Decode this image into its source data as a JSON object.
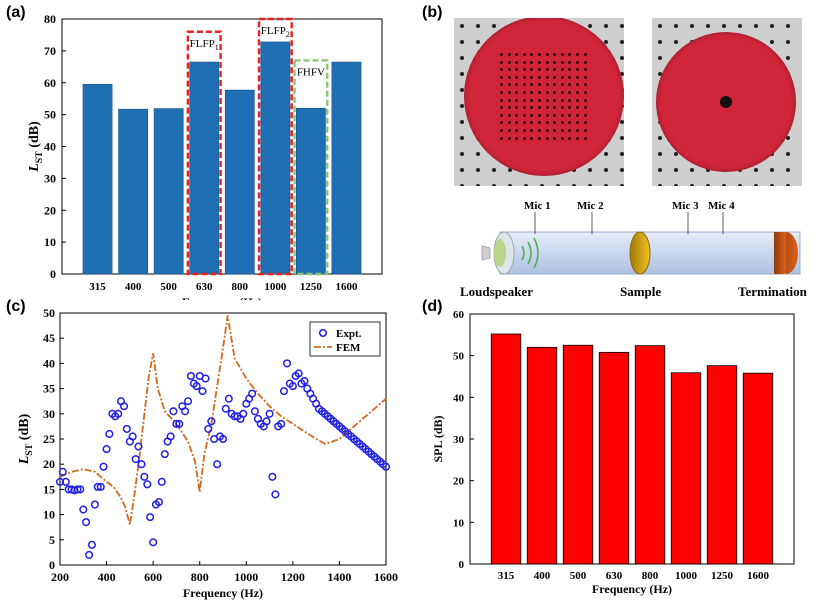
{
  "panel_labels": {
    "a": "(a)",
    "b": "(b)",
    "c": "(c)",
    "d": "(d)"
  },
  "chart_data": [
    {
      "id": "a",
      "type": "bar",
      "title": "",
      "xlabel": "Frequency (Hz)",
      "ylabel_main": "L",
      "ylabel_sub": "ST",
      "ylabel_unit": " (dB)",
      "categories": [
        "315",
        "400",
        "500",
        "630",
        "800",
        "1000",
        "1250",
        "1600"
      ],
      "values": [
        59.5,
        51.7,
        51.9,
        66.5,
        57.7,
        72.8,
        52.0,
        66.5
      ],
      "ylim": [
        0,
        80
      ],
      "yticks": [
        0,
        10,
        20,
        30,
        40,
        50,
        60,
        70,
        80
      ],
      "bar_color": "#1f6fb4",
      "annotations": [
        {
          "label": "FLFP",
          "sub": "1",
          "category_index": 3,
          "top": 76,
          "color": "#e8201e"
        },
        {
          "label": "FLFP",
          "sub": "2",
          "category_index": 5,
          "top": 80,
          "color": "#e8201e"
        },
        {
          "label": "FHFV",
          "sub": "",
          "category_index": 6,
          "top": 67,
          "color": "#8bc37a"
        }
      ]
    },
    {
      "id": "c",
      "type": "line",
      "xlabel": "Frequency (Hz)",
      "ylabel_main": "L",
      "ylabel_sub": "ST",
      "ylabel_unit": " (dB)",
      "xlim": [
        200,
        1600
      ],
      "ylim": [
        0,
        50
      ],
      "xticks": [
        200,
        400,
        600,
        800,
        1000,
        1200,
        1400,
        1600
      ],
      "yticks": [
        0,
        5,
        10,
        15,
        20,
        25,
        30,
        35,
        40,
        45,
        50
      ],
      "legend": [
        {
          "name": "Expt.",
          "color": "#1f1fe6"
        },
        {
          "name": "FEM",
          "color": "#d2691e"
        }
      ],
      "expt": {
        "x": [
          200,
          212,
          225,
          237,
          250,
          262,
          275,
          287,
          300,
          312,
          325,
          337,
          350,
          362,
          375,
          387,
          400,
          412,
          425,
          437,
          450,
          462,
          475,
          487,
          500,
          512,
          525,
          537,
          550,
          562,
          575,
          587,
          600,
          612,
          625,
          637,
          650,
          662,
          675,
          687,
          700,
          712,
          725,
          737,
          750,
          762,
          775,
          787,
          800,
          812,
          825,
          837,
          850,
          862,
          875,
          887,
          900,
          912,
          925,
          937,
          950,
          962,
          975,
          987,
          1000,
          1012,
          1025,
          1037,
          1050,
          1062,
          1075,
          1087,
          1100,
          1112,
          1125,
          1137,
          1150,
          1162,
          1175,
          1187,
          1200,
          1212,
          1225,
          1237,
          1250,
          1262,
          1275,
          1287,
          1300,
          1312,
          1325,
          1337,
          1350,
          1362,
          1375,
          1387,
          1400,
          1412,
          1425,
          1437,
          1450,
          1462,
          1475,
          1487,
          1500,
          1512,
          1525,
          1537,
          1550,
          1562,
          1575,
          1587,
          1600
        ],
        "y": [
          16.5,
          18.5,
          16.5,
          15.0,
          15.0,
          14.8,
          15.0,
          15.0,
          11.0,
          8.5,
          2.0,
          4.0,
          12.0,
          15.5,
          15.5,
          19.5,
          23.0,
          26.0,
          30.0,
          29.5,
          30.0,
          32.5,
          31.5,
          27.0,
          24.5,
          25.5,
          21.0,
          23.5,
          20.0,
          17.5,
          16.0,
          9.5,
          4.5,
          12.0,
          12.5,
          16.5,
          22.0,
          24.5,
          25.5,
          30.5,
          28.0,
          28.0,
          31.5,
          30.5,
          32.5,
          37.5,
          36.0,
          35.5,
          37.5,
          34.5,
          37.0,
          27.0,
          28.5,
          25.0,
          20.0,
          25.5,
          25.0,
          31.0,
          33.0,
          30.0,
          29.5,
          29.5,
          29.0,
          30.0,
          32.0,
          33.0,
          34.0,
          30.5,
          29.0,
          28.0,
          27.5,
          28.5,
          30.0,
          17.5,
          14.0,
          27.5,
          28.0,
          34.5,
          40.0,
          36.0,
          35.5,
          37.5,
          38.0,
          36.0,
          36.5,
          35.0,
          34.0,
          33.0,
          32.0,
          31.0,
          30.5,
          30.0,
          29.5,
          29.0,
          28.5,
          28.0,
          27.5,
          27.0,
          26.5,
          26.0,
          25.5,
          25.0,
          24.5,
          24.0,
          23.5,
          23.0,
          22.5,
          22.0,
          21.5,
          21.0,
          20.5,
          20.0,
          19.5
        ]
      },
      "fem": {
        "x": [
          200,
          250,
          300,
          350,
          400,
          430,
          460,
          480,
          500,
          520,
          540,
          560,
          580,
          600,
          620,
          650,
          700,
          750,
          780,
          800,
          820,
          850,
          880,
          900,
          920,
          950,
          1000,
          1050,
          1100,
          1150,
          1200,
          1250,
          1300,
          1340,
          1400,
          1450,
          1500,
          1550,
          1600
        ],
        "y": [
          17.5,
          18.5,
          19.0,
          18.5,
          16.5,
          15.5,
          13.5,
          11.5,
          8.0,
          14.0,
          21.0,
          29.0,
          37.0,
          42.0,
          35.0,
          30.5,
          28.0,
          24.5,
          20.5,
          14.5,
          22.0,
          28.0,
          37.0,
          43.0,
          49.5,
          41.0,
          37.0,
          34.0,
          31.5,
          29.5,
          28.0,
          26.5,
          25.0,
          24.0,
          25.0,
          27.0,
          29.0,
          31.0,
          33.0
        ]
      }
    },
    {
      "id": "d",
      "type": "bar",
      "xlabel": "Frequency (Hz)",
      "ylabel": "SPL (dB)",
      "categories": [
        "315",
        "400",
        "500",
        "630",
        "800",
        "1000",
        "1250",
        "1600"
      ],
      "values": [
        55.2,
        52.0,
        52.5,
        50.8,
        52.4,
        45.9,
        47.6,
        45.8
      ],
      "ylim": [
        0,
        60
      ],
      "yticks": [
        0,
        10,
        20,
        30,
        40,
        50,
        60
      ],
      "bar_color": "#ff0000"
    }
  ],
  "diagram_b": {
    "mics": [
      "Mic 1",
      "Mic 2",
      "Mic 3",
      "Mic 4"
    ],
    "bottom_labels": [
      "Loudspeaker",
      "Sample",
      "Termination"
    ]
  }
}
